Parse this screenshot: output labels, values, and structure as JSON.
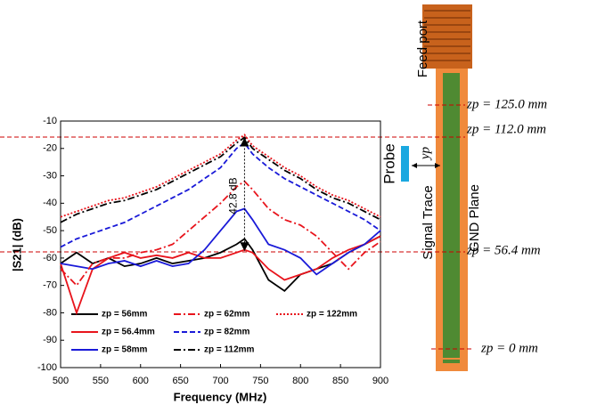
{
  "chart_data": {
    "type": "line",
    "xlabel": "Frequency (MHz)",
    "ylabel": "|S21| (dB)",
    "annotation": "42.8 dB",
    "x": [
      500,
      520,
      540,
      560,
      580,
      600,
      620,
      640,
      660,
      680,
      700,
      720,
      730,
      740,
      760,
      780,
      800,
      820,
      840,
      860,
      880,
      900
    ],
    "xlim": [
      500,
      900
    ],
    "xticks": [
      500,
      550,
      600,
      650,
      700,
      750,
      800,
      850,
      900
    ],
    "ylim": [
      -100,
      -10
    ],
    "yticks": [
      -100,
      -90,
      -80,
      -70,
      -60,
      -50,
      -40,
      -30,
      -20,
      -10
    ],
    "grid": false,
    "series": [
      {
        "name": "zp = 56mm",
        "color": "#000000",
        "linestyle": "solid",
        "values": [
          -62,
          -58,
          -62,
          -60,
          -63,
          -62,
          -60,
          -62,
          -61,
          -60,
          -58,
          -55,
          -53,
          -57,
          -68,
          -72,
          -66,
          -64,
          -62,
          -58,
          -55,
          -52
        ]
      },
      {
        "name": "zp = 56.4mm",
        "color": "#e8141c",
        "linestyle": "solid",
        "values": [
          -62,
          -80,
          -64,
          -60,
          -58,
          -60,
          -59,
          -60,
          -58,
          -60,
          -60,
          -58,
          -57,
          -58,
          -64,
          -68,
          -66,
          -64,
          -60,
          -57,
          -55,
          -52
        ]
      },
      {
        "name": "zp = 58mm",
        "color": "#1a1ad8",
        "linestyle": "solid",
        "values": [
          -62,
          -63,
          -64,
          -62,
          -61,
          -63,
          -61,
          -63,
          -62,
          -57,
          -50,
          -43,
          -42,
          -46,
          -55,
          -57,
          -60,
          -66,
          -62,
          -58,
          -55,
          -50
        ]
      },
      {
        "name": "zp = 62mm",
        "color": "#e8141c",
        "linestyle": "dashdot",
        "values": [
          -64,
          -70,
          -62,
          -60,
          -60,
          -58,
          -57,
          -55,
          -50,
          -45,
          -40,
          -34,
          -32,
          -35,
          -42,
          -46,
          -48,
          -52,
          -58,
          -64,
          -58,
          -54
        ]
      },
      {
        "name": "zp = 82mm",
        "color": "#1a1ad8",
        "linestyle": "dashed",
        "values": [
          -56,
          -53,
          -51,
          -49,
          -47,
          -44,
          -41,
          -38,
          -35,
          -31,
          -27,
          -20,
          -18,
          -22,
          -27,
          -31,
          -34,
          -37,
          -40,
          -43,
          -46,
          -50
        ]
      },
      {
        "name": "zp = 112mm",
        "color": "#000000",
        "linestyle": "dashdot",
        "values": [
          -47,
          -44,
          -42,
          -40,
          -39,
          -37,
          -35,
          -32,
          -29,
          -26,
          -23,
          -18,
          -16,
          -20,
          -24,
          -28,
          -31,
          -35,
          -38,
          -40,
          -43,
          -46
        ]
      },
      {
        "name": "zp = 122mm",
        "color": "#e8141c",
        "linestyle": "dotted",
        "values": [
          -45,
          -43,
          -41,
          -39,
          -38,
          -36,
          -34,
          -31,
          -28,
          -25,
          -22,
          -17,
          -15,
          -19,
          -23,
          -27,
          -30,
          -34,
          -37,
          -39,
          -42,
          -45
        ]
      }
    ]
  },
  "diagram": {
    "feed_port": "Feed port",
    "probe": "Probe",
    "yp": "yp",
    "signal_trace": "Signal Trace",
    "gnd_plane": "GND Plane",
    "z125": "zp = 125.0 mm",
    "z112": "zp = 112.0 mm",
    "z56": "zp = 56.4 mm",
    "z0": "zp = 0 mm"
  }
}
